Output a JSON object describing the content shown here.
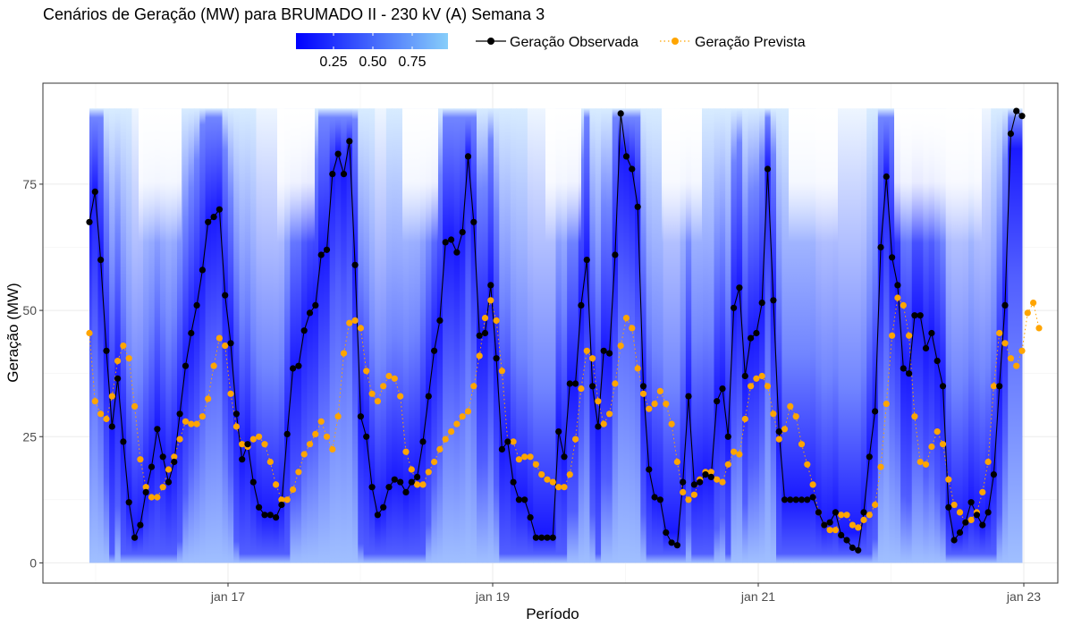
{
  "chart_data": {
    "type": "line",
    "title": "Cenários de Geração (MW) para BRUMADO II - 230 kV (A) Semana 3",
    "xlabel": "Período",
    "ylabel": "Geração (MW)",
    "x_ticks": [
      "jan 17",
      "jan 19",
      "jan 21",
      "jan 23"
    ],
    "y_ticks": [
      0,
      25,
      50,
      75
    ],
    "ylim": [
      -4,
      95
    ],
    "grid": true,
    "legend": {
      "position": "top",
      "colorbar": {
        "ticks": [
          "0.25",
          "0.50",
          "0.75"
        ],
        "low_color": "#0000FF",
        "high_color": "#87CEFA"
      },
      "entries": [
        "Geração Observada",
        "Geração Prevista"
      ]
    },
    "scenario_band": {
      "ymin": 0,
      "ymax": 90,
      "color_low": "#0000FF",
      "color_high": "#87CEFA"
    },
    "series": [
      {
        "name": "Geração Observada",
        "color": "#000000",
        "values": [
          67.5,
          73.5,
          60.0,
          42.0,
          27.0,
          36.5,
          24.0,
          12.0,
          5.0,
          7.5,
          14.0,
          19.0,
          26.5,
          21.0,
          16.0,
          20.0,
          29.5,
          39.0,
          45.5,
          51.0,
          58.0,
          67.5,
          68.5,
          70.0,
          53.0,
          43.5,
          29.5,
          20.5,
          23.5,
          16.0,
          11.0,
          9.5,
          9.5,
          9.0,
          11.5,
          25.5,
          38.5,
          39.0,
          46.0,
          49.5,
          51.0,
          61.0,
          62.0,
          77.0,
          81.0,
          77.0,
          83.5,
          59.0,
          29.0,
          25.0,
          15.0,
          9.5,
          11.0,
          15.0,
          16.5,
          16.0,
          14.0,
          16.0,
          17.0,
          24.0,
          33.0,
          42.0,
          48.0,
          63.5,
          64.0,
          61.5,
          65.5,
          80.5,
          67.5,
          45.0,
          45.5,
          55.0,
          40.5,
          22.5,
          24.0,
          16.0,
          12.5,
          12.5,
          9.0,
          5.0,
          5.0,
          5.0,
          5.0,
          26.0,
          21.0,
          35.5,
          35.5,
          51.0,
          60.0,
          35.0,
          27.0,
          42.0,
          41.5,
          61.0,
          89.0,
          80.5,
          78.0,
          70.5,
          35.0,
          18.5,
          13.0,
          12.5,
          6.0,
          4.0,
          3.5,
          16.0,
          33.0,
          15.5,
          16.0,
          17.5,
          17.0,
          32.0,
          34.5,
          25.0,
          50.5,
          54.5,
          37.0,
          44.5,
          45.5,
          51.5,
          78.0,
          52.0,
          26.0,
          12.5,
          12.5,
          12.5,
          12.5,
          12.5,
          13.0,
          10.0,
          7.5,
          8.0,
          10.0,
          5.5,
          4.5,
          3.0,
          2.5,
          10.0,
          21.0,
          30.0,
          62.5,
          76.5,
          60.5,
          55.0,
          38.5,
          37.5,
          49.0,
          49.0,
          42.5,
          45.5,
          40.0,
          35.0,
          11.0,
          4.5,
          6.0,
          8.0,
          12.0,
          9.5,
          7.5,
          10.0,
          17.5,
          35.0,
          51.0,
          85.0,
          89.5,
          88.5
        ]
      },
      {
        "name": "Geração Prevista",
        "color": "#FFA500",
        "values": [
          45.5,
          32.0,
          29.5,
          28.5,
          33.0,
          40.0,
          43.0,
          40.5,
          31.0,
          20.5,
          15.0,
          13.0,
          13.0,
          15.0,
          18.5,
          21.0,
          24.5,
          28.0,
          27.5,
          27.5,
          29.0,
          32.5,
          39.0,
          44.5,
          43.0,
          33.5,
          27.0,
          23.5,
          23.0,
          24.5,
          25.0,
          23.5,
          20.0,
          15.5,
          12.5,
          12.5,
          14.5,
          18.0,
          21.5,
          23.5,
          25.5,
          28.0,
          25.0,
          22.5,
          29.0,
          41.5,
          47.5,
          48.0,
          46.5,
          38.0,
          33.5,
          32.0,
          35.0,
          37.0,
          36.5,
          33.0,
          22.0,
          18.5,
          15.5,
          15.5,
          18.0,
          20.0,
          22.5,
          24.5,
          26.0,
          27.5,
          29.0,
          30.0,
          35.0,
          41.0,
          48.5,
          52.0,
          48.0,
          38.0,
          24.0,
          24.0,
          20.5,
          21.0,
          21.0,
          19.5,
          17.5,
          16.5,
          16.0,
          15.0,
          15.0,
          17.5,
          24.5,
          34.5,
          42.0,
          40.5,
          32.0,
          27.5,
          29.5,
          35.5,
          43.0,
          48.5,
          46.5,
          38.5,
          33.5,
          30.5,
          31.5,
          34.0,
          31.5,
          27.5,
          20.0,
          14.0,
          12.5,
          13.5,
          16.5,
          18.0,
          18.0,
          16.5,
          16.0,
          19.5,
          22.0,
          21.5,
          28.5,
          35.0,
          36.5,
          37.0,
          35.0,
          29.5,
          24.5,
          26.5,
          31.0,
          29.0,
          23.5,
          19.5,
          15.5,
          10.0,
          7.5,
          6.5,
          6.5,
          9.5,
          9.5,
          7.5,
          7.0,
          8.5,
          9.5,
          11.5,
          19.0,
          31.5,
          45.0,
          52.5,
          51.0,
          45.0,
          29.0,
          20.0,
          19.5,
          23.0,
          26.0,
          23.5,
          16.5,
          11.5,
          10.0,
          8.0,
          8.5,
          10.0,
          14.0,
          20.0,
          35.0,
          45.5,
          43.5,
          40.5,
          39.0,
          42.0,
          49.5,
          51.5,
          46.5
        ]
      }
    ]
  }
}
